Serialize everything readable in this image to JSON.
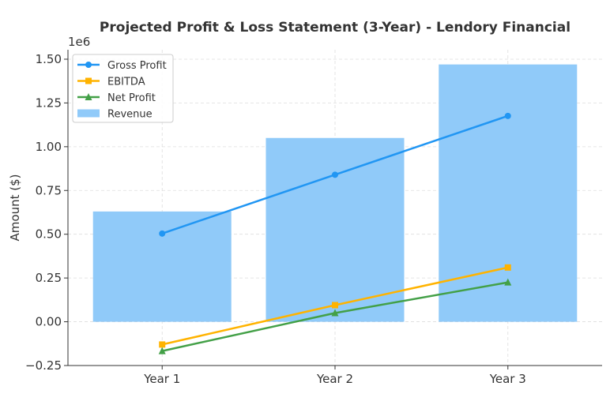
{
  "chart_data": {
    "type": "bar+line",
    "title": "Projected Profit & Loss Statement (3-Year) - Lendory Financial",
    "xlabel": "",
    "ylabel": "Amount ($)",
    "y_offset_label": "1e6",
    "categories": [
      "Year 1",
      "Year 2",
      "Year 3"
    ],
    "ylim": [
      -250000,
      1554000
    ],
    "yticks": [
      -250000,
      0,
      250000,
      500000,
      750000,
      1000000,
      1250000,
      1500000
    ],
    "ytick_labels": [
      "−0.25",
      "0.00",
      "0.25",
      "0.50",
      "0.75",
      "1.00",
      "1.25",
      "1.50"
    ],
    "grid": true,
    "legend_position": "top-left",
    "bars": [
      {
        "name": "Revenue",
        "values": [
          630000,
          1050000,
          1470000
        ],
        "color": "#90CAF9"
      }
    ],
    "series": [
      {
        "name": "Gross Profit",
        "values": [
          504000,
          840000,
          1176000
        ],
        "color": "#2196F3",
        "marker": "circle"
      },
      {
        "name": "EBITDA",
        "values": [
          -130000,
          95000,
          310000
        ],
        "color": "#FFB300",
        "marker": "square"
      },
      {
        "name": "Net Profit",
        "values": [
          -167000,
          50000,
          225000
        ],
        "color": "#43A047",
        "marker": "triangle"
      }
    ]
  }
}
